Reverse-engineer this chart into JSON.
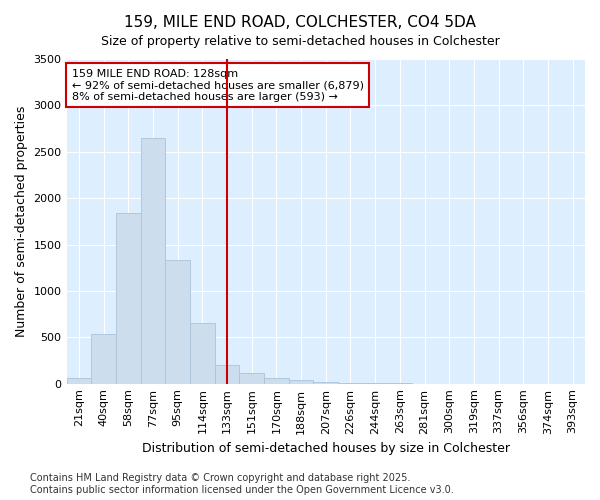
{
  "title1": "159, MILE END ROAD, COLCHESTER, CO4 5DA",
  "title2": "Size of property relative to semi-detached houses in Colchester",
  "xlabel": "Distribution of semi-detached houses by size in Colchester",
  "ylabel": "Number of semi-detached properties",
  "categories": [
    "21sqm",
    "40sqm",
    "58sqm",
    "77sqm",
    "95sqm",
    "114sqm",
    "133sqm",
    "151sqm",
    "170sqm",
    "188sqm",
    "207sqm",
    "226sqm",
    "244sqm",
    "263sqm",
    "281sqm",
    "300sqm",
    "319sqm",
    "337sqm",
    "356sqm",
    "374sqm",
    "393sqm"
  ],
  "values": [
    65,
    540,
    1840,
    2650,
    1330,
    650,
    200,
    110,
    60,
    35,
    20,
    10,
    5,
    2,
    1,
    0,
    0,
    0,
    0,
    0,
    0
  ],
  "bar_color": "#ccdded",
  "bar_edge_color": "#aac4da",
  "vline_color": "#cc0000",
  "annotation_title": "159 MILE END ROAD: 128sqm",
  "annotation_line1": "← 92% of semi-detached houses are smaller (6,879)",
  "annotation_line2": "8% of semi-detached houses are larger (593) →",
  "annotation_box_facecolor": "#ffffff",
  "annotation_box_edgecolor": "#cc0000",
  "ylim": [
    0,
    3500
  ],
  "yticks": [
    0,
    500,
    1000,
    1500,
    2000,
    2500,
    3000,
    3500
  ],
  "fig_bg_color": "#ffffff",
  "axes_bg_color": "#ddeeff",
  "grid_color": "#ffffff",
  "footer1": "Contains HM Land Registry data © Crown copyright and database right 2025.",
  "footer2": "Contains public sector information licensed under the Open Government Licence v3.0.",
  "title_fontsize": 11,
  "subtitle_fontsize": 9,
  "axis_label_fontsize": 9,
  "tick_fontsize": 8,
  "footer_fontsize": 7
}
